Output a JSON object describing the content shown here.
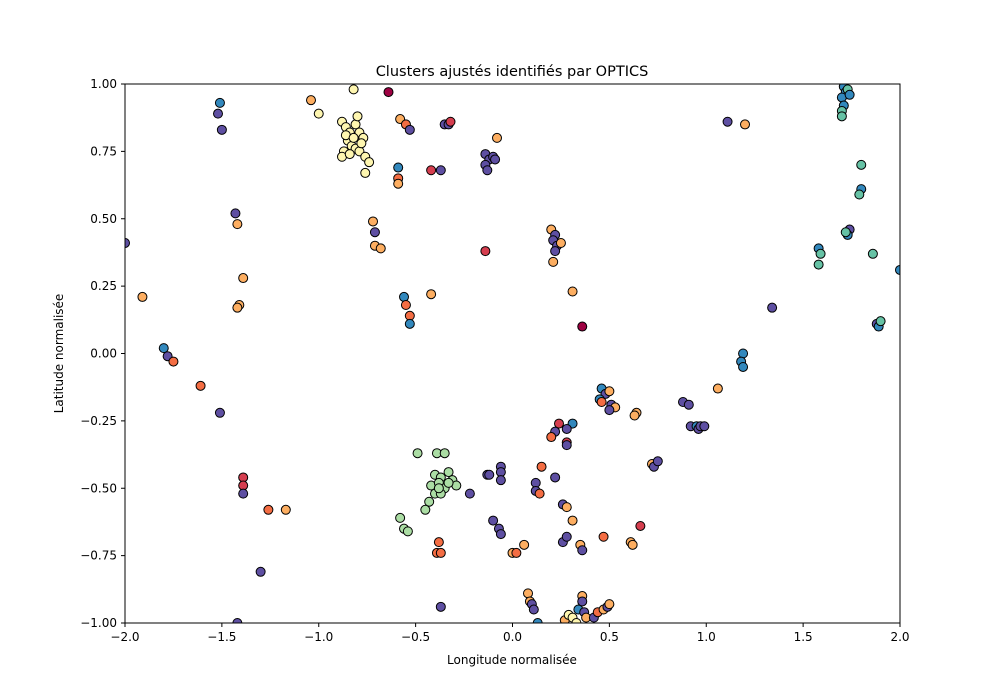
{
  "chart_data": {
    "type": "scatter",
    "title": "Clusters ajustés identifiés par OPTICS",
    "xlabel": "Longitude normalisée",
    "ylabel": "Latitude normalisée",
    "xlim": [
      -2.0,
      2.0
    ],
    "ylim": [
      -1.0,
      1.0
    ],
    "x_ticks": [
      -2.0,
      -1.5,
      -1.0,
      -0.5,
      0.0,
      0.5,
      1.0,
      1.5,
      2.0
    ],
    "x_tick_labels": [
      "−2.0",
      "−1.5",
      "−1.0",
      "−0.5",
      "0.0",
      "0.5",
      "1.0",
      "1.5",
      "2.0"
    ],
    "y_ticks": [
      1.0,
      0.75,
      0.5,
      0.25,
      0.0,
      -0.25,
      -0.5,
      -0.75,
      -1.0
    ],
    "y_tick_labels": [
      "1.00",
      "0.75",
      "0.50",
      "0.25",
      "0.00",
      "−0.25",
      "−0.50",
      "−0.75",
      "−1.00"
    ],
    "grid": false,
    "legend": "none",
    "colors": {
      "pale-yellow": "#fef6b0",
      "light-orange": "#fdae61",
      "orange-red": "#f46d43",
      "red": "#d53e4f",
      "dark-red": "#9e0142",
      "purple": "#5e4fa2",
      "blue": "#3288bd",
      "teal": "#66c2a5",
      "light-green": "#abdda4"
    },
    "points": [
      [
        -1.51,
        0.93,
        "blue"
      ],
      [
        -1.52,
        0.89,
        "purple"
      ],
      [
        -1.5,
        0.83,
        "purple"
      ],
      [
        -1.43,
        0.52,
        "purple"
      ],
      [
        -1.42,
        0.48,
        "light-orange"
      ],
      [
        -1.39,
        0.28,
        "light-orange"
      ],
      [
        -1.41,
        0.18,
        "light-orange"
      ],
      [
        -1.42,
        0.17,
        "light-orange"
      ],
      [
        -1.91,
        0.21,
        "light-orange"
      ],
      [
        -2.0,
        0.41,
        "purple"
      ],
      [
        -1.8,
        0.02,
        "blue"
      ],
      [
        -1.78,
        -0.01,
        "purple"
      ],
      [
        -1.75,
        -0.03,
        "orange-red"
      ],
      [
        -1.61,
        -0.12,
        "orange-red"
      ],
      [
        -1.51,
        -0.22,
        "purple"
      ],
      [
        -1.39,
        -0.46,
        "red"
      ],
      [
        -1.39,
        -0.49,
        "red"
      ],
      [
        -1.39,
        -0.52,
        "purple"
      ],
      [
        -1.26,
        -0.58,
        "orange-red"
      ],
      [
        -1.17,
        -0.58,
        "light-orange"
      ],
      [
        -1.3,
        -0.81,
        "purple"
      ],
      [
        -1.42,
        -1.0,
        "purple"
      ],
      [
        -1.04,
        0.94,
        "light-orange"
      ],
      [
        -1.0,
        0.89,
        "pale-yellow"
      ],
      [
        -0.82,
        0.98,
        "pale-yellow"
      ],
      [
        -0.88,
        0.86,
        "pale-yellow"
      ],
      [
        -0.86,
        0.84,
        "pale-yellow"
      ],
      [
        -0.84,
        0.82,
        "pale-yellow"
      ],
      [
        -0.81,
        0.85,
        "pale-yellow"
      ],
      [
        -0.79,
        0.82,
        "pale-yellow"
      ],
      [
        -0.77,
        0.8,
        "pale-yellow"
      ],
      [
        -0.85,
        0.79,
        "pale-yellow"
      ],
      [
        -0.83,
        0.77,
        "pale-yellow"
      ],
      [
        -0.81,
        0.76,
        "pale-yellow"
      ],
      [
        -0.87,
        0.75,
        "pale-yellow"
      ],
      [
        -0.88,
        0.73,
        "pale-yellow"
      ],
      [
        -0.84,
        0.74,
        "pale-yellow"
      ],
      [
        -0.79,
        0.75,
        "pale-yellow"
      ],
      [
        -0.76,
        0.73,
        "pale-yellow"
      ],
      [
        -0.74,
        0.71,
        "pale-yellow"
      ],
      [
        -0.76,
        0.67,
        "pale-yellow"
      ],
      [
        -0.8,
        0.88,
        "pale-yellow"
      ],
      [
        -0.86,
        0.81,
        "pale-yellow"
      ],
      [
        -0.82,
        0.8,
        "pale-yellow"
      ],
      [
        -0.78,
        0.78,
        "pale-yellow"
      ],
      [
        -0.64,
        0.97,
        "dark-red"
      ],
      [
        -0.58,
        0.87,
        "light-orange"
      ],
      [
        -0.55,
        0.85,
        "orange-red"
      ],
      [
        -0.53,
        0.83,
        "purple"
      ],
      [
        -0.59,
        0.69,
        "blue"
      ],
      [
        -0.59,
        0.65,
        "orange-red"
      ],
      [
        -0.59,
        0.63,
        "light-orange"
      ],
      [
        -0.72,
        0.49,
        "light-orange"
      ],
      [
        -0.71,
        0.45,
        "purple"
      ],
      [
        -0.71,
        0.4,
        "light-orange"
      ],
      [
        -0.68,
        0.39,
        "light-orange"
      ],
      [
        -0.56,
        0.21,
        "blue"
      ],
      [
        -0.55,
        0.18,
        "orange-red"
      ],
      [
        -0.53,
        0.14,
        "orange-red"
      ],
      [
        -0.53,
        0.11,
        "blue"
      ],
      [
        -0.42,
        0.22,
        "light-orange"
      ],
      [
        -0.42,
        0.68,
        "red"
      ],
      [
        -0.37,
        0.68,
        "purple"
      ],
      [
        -0.35,
        0.85,
        "purple"
      ],
      [
        -0.33,
        0.85,
        "purple"
      ],
      [
        -0.32,
        0.86,
        "red"
      ],
      [
        -0.14,
        0.74,
        "purple"
      ],
      [
        -0.12,
        0.72,
        "purple"
      ],
      [
        -0.14,
        0.7,
        "purple"
      ],
      [
        -0.13,
        0.68,
        "purple"
      ],
      [
        -0.1,
        0.73,
        "purple"
      ],
      [
        -0.09,
        0.72,
        "purple"
      ],
      [
        -0.08,
        0.8,
        "light-orange"
      ],
      [
        -0.14,
        0.38,
        "red"
      ],
      [
        0.2,
        0.46,
        "light-orange"
      ],
      [
        0.22,
        0.44,
        "purple"
      ],
      [
        0.21,
        0.42,
        "purple"
      ],
      [
        0.23,
        0.4,
        "purple"
      ],
      [
        0.25,
        0.41,
        "light-orange"
      ],
      [
        0.22,
        0.38,
        "purple"
      ],
      [
        0.21,
        0.34,
        "light-orange"
      ],
      [
        0.31,
        0.23,
        "light-orange"
      ],
      [
        0.36,
        0.1,
        "dark-red"
      ],
      [
        1.11,
        0.86,
        "purple"
      ],
      [
        1.2,
        0.85,
        "light-orange"
      ],
      [
        1.71,
        0.99,
        "blue"
      ],
      [
        1.72,
        0.97,
        "blue"
      ],
      [
        1.73,
        0.98,
        "teal"
      ],
      [
        1.7,
        0.95,
        "blue"
      ],
      [
        1.71,
        0.92,
        "blue"
      ],
      [
        1.7,
        0.9,
        "teal"
      ],
      [
        1.7,
        0.88,
        "teal"
      ],
      [
        1.74,
        0.96,
        "blue"
      ],
      [
        1.8,
        0.7,
        "teal"
      ],
      [
        1.8,
        0.61,
        "blue"
      ],
      [
        1.79,
        0.59,
        "teal"
      ],
      [
        1.74,
        0.46,
        "purple"
      ],
      [
        1.73,
        0.44,
        "blue"
      ],
      [
        1.72,
        0.45,
        "teal"
      ],
      [
        1.58,
        0.39,
        "blue"
      ],
      [
        1.59,
        0.37,
        "teal"
      ],
      [
        1.58,
        0.33,
        "teal"
      ],
      [
        1.86,
        0.37,
        "teal"
      ],
      [
        2.0,
        0.31,
        "blue"
      ],
      [
        1.88,
        0.11,
        "purple"
      ],
      [
        1.89,
        0.1,
        "blue"
      ],
      [
        1.9,
        0.12,
        "teal"
      ],
      [
        1.34,
        0.17,
        "purple"
      ],
      [
        1.19,
        0.0,
        "blue"
      ],
      [
        1.18,
        -0.03,
        "blue"
      ],
      [
        1.19,
        -0.05,
        "blue"
      ],
      [
        1.06,
        -0.13,
        "light-orange"
      ],
      [
        0.88,
        -0.18,
        "purple"
      ],
      [
        0.91,
        -0.19,
        "purple"
      ],
      [
        0.92,
        -0.27,
        "purple"
      ],
      [
        0.95,
        -0.27,
        "blue"
      ],
      [
        0.96,
        -0.28,
        "purple"
      ],
      [
        0.97,
        -0.27,
        "purple"
      ],
      [
        0.99,
        -0.27,
        "purple"
      ],
      [
        0.72,
        -0.41,
        "light-orange"
      ],
      [
        0.73,
        -0.42,
        "purple"
      ],
      [
        0.75,
        -0.4,
        "purple"
      ],
      [
        0.64,
        -0.22,
        "light-orange"
      ],
      [
        0.63,
        -0.23,
        "light-orange"
      ],
      [
        0.46,
        -0.13,
        "blue"
      ],
      [
        0.48,
        -0.15,
        "purple"
      ],
      [
        0.5,
        -0.14,
        "light-orange"
      ],
      [
        0.45,
        -0.17,
        "blue"
      ],
      [
        0.46,
        -0.18,
        "orange-red"
      ],
      [
        0.51,
        -0.19,
        "purple"
      ],
      [
        0.53,
        -0.2,
        "light-orange"
      ],
      [
        0.5,
        -0.21,
        "purple"
      ],
      [
        0.31,
        -0.26,
        "blue"
      ],
      [
        0.24,
        -0.26,
        "red"
      ],
      [
        0.22,
        -0.29,
        "purple"
      ],
      [
        0.2,
        -0.31,
        "orange-red"
      ],
      [
        0.28,
        -0.28,
        "purple"
      ],
      [
        0.28,
        -0.33,
        "red"
      ],
      [
        0.28,
        -0.34,
        "purple"
      ],
      [
        -0.49,
        -0.37,
        "light-green"
      ],
      [
        -0.39,
        -0.37,
        "light-green"
      ],
      [
        -0.35,
        -0.37,
        "light-green"
      ],
      [
        -0.4,
        -0.45,
        "light-green"
      ],
      [
        -0.37,
        -0.46,
        "light-green"
      ],
      [
        -0.33,
        -0.44,
        "light-green"
      ],
      [
        -0.42,
        -0.49,
        "light-green"
      ],
      [
        -0.38,
        -0.48,
        "light-green"
      ],
      [
        -0.35,
        -0.5,
        "light-green"
      ],
      [
        -0.31,
        -0.47,
        "light-green"
      ],
      [
        -0.29,
        -0.49,
        "light-green"
      ],
      [
        -0.4,
        -0.52,
        "light-green"
      ],
      [
        -0.37,
        -0.52,
        "light-green"
      ],
      [
        -0.43,
        -0.55,
        "light-green"
      ],
      [
        -0.45,
        -0.58,
        "light-green"
      ],
      [
        -0.33,
        -0.48,
        "light-green"
      ],
      [
        -0.38,
        -0.5,
        "light-green"
      ],
      [
        -0.58,
        -0.61,
        "light-green"
      ],
      [
        -0.56,
        -0.65,
        "light-green"
      ],
      [
        -0.54,
        -0.66,
        "light-green"
      ],
      [
        -0.22,
        -0.52,
        "purple"
      ],
      [
        -0.38,
        -0.7,
        "orange-red"
      ],
      [
        -0.39,
        -0.74,
        "orange-red"
      ],
      [
        -0.37,
        -0.74,
        "orange-red"
      ],
      [
        -0.37,
        -0.94,
        "purple"
      ],
      [
        -0.13,
        -0.45,
        "purple"
      ],
      [
        -0.12,
        -0.45,
        "purple"
      ],
      [
        -0.06,
        -0.42,
        "purple"
      ],
      [
        -0.06,
        -0.44,
        "purple"
      ],
      [
        -0.06,
        -0.47,
        "purple"
      ],
      [
        -0.1,
        -0.62,
        "purple"
      ],
      [
        -0.07,
        -0.65,
        "purple"
      ],
      [
        -0.06,
        -0.67,
        "purple"
      ],
      [
        0.0,
        -0.74,
        "light-orange"
      ],
      [
        0.02,
        -0.74,
        "orange-red"
      ],
      [
        0.06,
        -0.71,
        "light-orange"
      ],
      [
        0.12,
        -0.48,
        "purple"
      ],
      [
        0.12,
        -0.51,
        "purple"
      ],
      [
        0.14,
        -0.52,
        "orange-red"
      ],
      [
        0.15,
        -0.42,
        "orange-red"
      ],
      [
        0.22,
        -0.46,
        "purple"
      ],
      [
        0.26,
        -0.56,
        "purple"
      ],
      [
        0.28,
        -0.57,
        "light-orange"
      ],
      [
        0.31,
        -0.62,
        "light-orange"
      ],
      [
        0.26,
        -0.7,
        "purple"
      ],
      [
        0.28,
        -0.68,
        "purple"
      ],
      [
        0.35,
        -0.71,
        "light-orange"
      ],
      [
        0.36,
        -0.73,
        "purple"
      ],
      [
        0.47,
        -0.68,
        "orange-red"
      ],
      [
        0.61,
        -0.7,
        "light-orange"
      ],
      [
        0.62,
        -0.71,
        "light-orange"
      ],
      [
        0.66,
        -0.64,
        "red"
      ],
      [
        0.08,
        -0.89,
        "light-orange"
      ],
      [
        0.09,
        -0.92,
        "light-orange"
      ],
      [
        0.1,
        -0.93,
        "purple"
      ],
      [
        0.11,
        -0.95,
        "purple"
      ],
      [
        0.13,
        -1.0,
        "blue"
      ],
      [
        0.27,
        -0.99,
        "light-orange"
      ],
      [
        0.29,
        -0.97,
        "pale-yellow"
      ],
      [
        0.31,
        -0.98,
        "pale-yellow"
      ],
      [
        0.34,
        -0.95,
        "blue"
      ],
      [
        0.36,
        -0.9,
        "light-orange"
      ],
      [
        0.36,
        -0.92,
        "purple"
      ],
      [
        0.37,
        -0.96,
        "purple"
      ],
      [
        0.38,
        -0.98,
        "light-orange"
      ],
      [
        0.42,
        -0.98,
        "purple"
      ],
      [
        0.44,
        -0.96,
        "orange-red"
      ],
      [
        0.47,
        -0.95,
        "light-orange"
      ],
      [
        0.49,
        -0.94,
        "purple"
      ],
      [
        0.5,
        -0.93,
        "light-orange"
      ],
      [
        0.33,
        -1.0,
        "pale-yellow"
      ]
    ]
  }
}
